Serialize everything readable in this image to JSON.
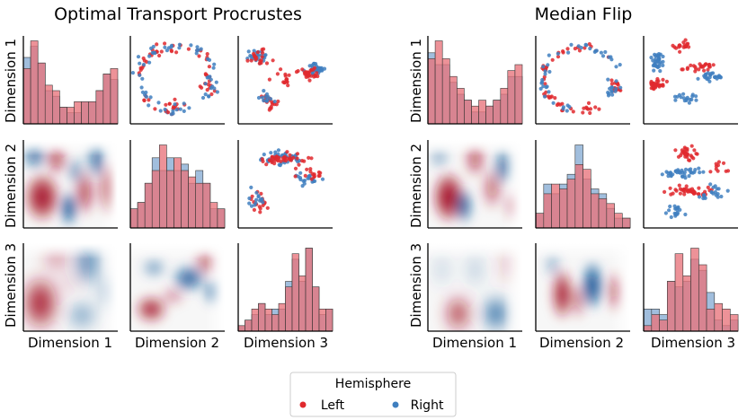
{
  "chart_data": [
    {
      "type": "pairplot",
      "title": "Optimal Transport Procrustes",
      "row_labels": [
        "Dimension 1",
        "Dimension 2",
        "Dimension 3"
      ],
      "col_labels": [
        "Dimension 1",
        "Dimension 2",
        "Dimension 3"
      ],
      "diagonal": "histogram",
      "upper": "scatter",
      "lower": "kde-heatmap",
      "hist_counts": {
        "dim1": {
          "left": [
            10,
            15,
            11,
            7,
            6,
            3,
            3,
            4,
            4,
            4,
            6,
            9,
            10
          ],
          "right": [
            12,
            14,
            11,
            6,
            5,
            3,
            2,
            2,
            4,
            4,
            6,
            9,
            8
          ]
        },
        "dim2": {
          "left": [
            3,
            4,
            7,
            9,
            13,
            9,
            11,
            9,
            8,
            7,
            7,
            4,
            3
          ],
          "right": [
            3,
            4,
            7,
            11,
            9,
            11,
            9,
            10,
            7,
            9,
            7,
            3,
            3
          ]
        },
        "dim3": {
          "left": [
            1,
            2,
            4,
            5,
            4,
            3,
            5,
            8,
            14,
            10,
            15,
            8,
            4,
            4
          ],
          "right": [
            1,
            2,
            3,
            5,
            3,
            4,
            4,
            9,
            13,
            9,
            15,
            8,
            3,
            4
          ]
        }
      }
    },
    {
      "type": "pairplot",
      "title": "Median Flip",
      "row_labels": [
        "Dimension 1",
        "Dimension 2",
        "Dimension 3"
      ],
      "col_labels": [
        "Dimension 1",
        "Dimension 2",
        "Dimension 3"
      ],
      "diagonal": "histogram",
      "upper": "scatter",
      "lower": "kde-heatmap",
      "hist_counts": {
        "dim1": {
          "left": [
            11,
            14,
            11,
            8,
            6,
            4,
            3,
            4,
            3,
            4,
            6,
            9,
            10
          ],
          "right": [
            12,
            10,
            10,
            7,
            5,
            4,
            2,
            2,
            3,
            4,
            5,
            8,
            8
          ]
        },
        "dim2": {
          "left": [
            3,
            7,
            9,
            8,
            10,
            13,
            12,
            7,
            6,
            5,
            3,
            2
          ],
          "right": [
            3,
            9,
            7,
            9,
            11,
            17,
            10,
            8,
            7,
            4,
            2,
            2
          ]
        },
        "dim3": {
          "left": [
            1,
            3,
            2,
            9,
            14,
            10,
            15,
            12,
            4,
            5,
            4,
            3
          ],
          "right": [
            4,
            4,
            3,
            9,
            8,
            9,
            13,
            11,
            7,
            2,
            1,
            2
          ]
        }
      }
    }
  ],
  "legend": {
    "title": "Hemisphere",
    "placement": "bottom-center",
    "entries": [
      {
        "label": "Left",
        "color": "#e0292e"
      },
      {
        "label": "Right",
        "color": "#3f7fbf"
      }
    ]
  },
  "colors": {
    "left": "#e0292e",
    "right": "#3f7fbf",
    "hist_left": "#e8737b",
    "hist_right": "#86acd3",
    "heat_positive": "#a40f25",
    "heat_negative": "#0b4f93"
  }
}
